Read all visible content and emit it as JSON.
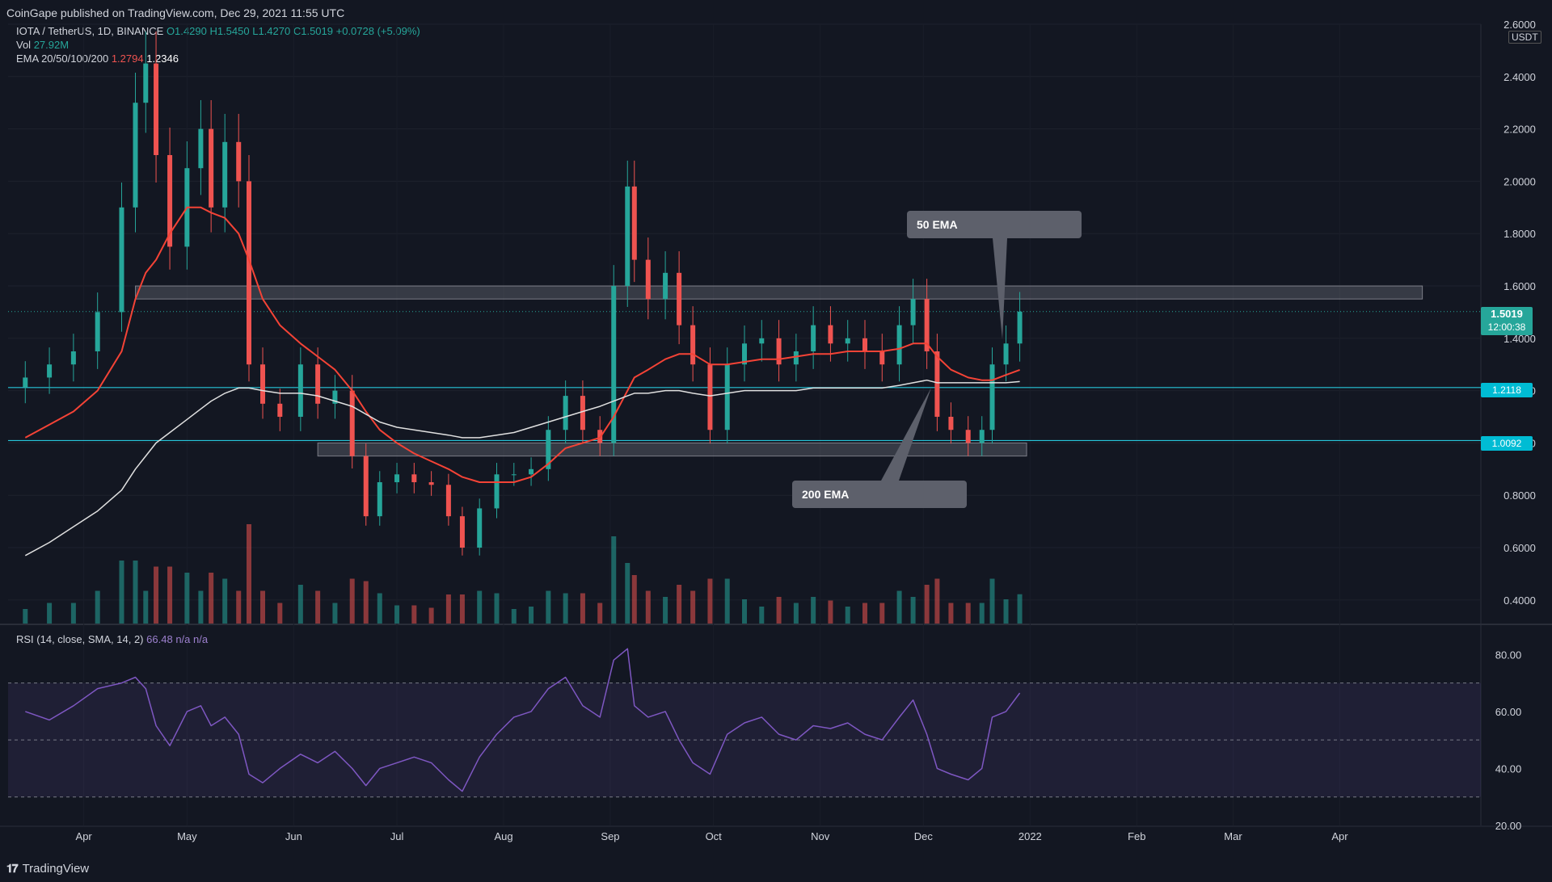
{
  "header": {
    "publisher": "CoinGape published on TradingView.com, Dec 29, 2021 11:55 UTC"
  },
  "legend": {
    "symbol": "IOTA / TetherUS, 1D, BINANCE",
    "open": "O1.4290",
    "high": "H1.5450",
    "low": "L1.4270",
    "close": "C1.5019",
    "change": "+0.0728 (+5.09%)",
    "vol_label": "Vol",
    "vol_value": "27.92M",
    "ema_label": "EMA 20/50/100/200",
    "ema_value1": "1.2794",
    "ema_value2": "1.2346",
    "rsi_label": "RSI (14, close, SMA, 14, 2)",
    "rsi_value": "66.48",
    "rsi_na": "n/a n/a"
  },
  "price_axis": {
    "currency": "USDT",
    "current_price": "1.5019",
    "countdown": "12:00:38",
    "level_1": "1.2118",
    "level_2": "1.0092"
  },
  "annotations": {
    "ema50": "50 EMA",
    "ema200": "200 EMA"
  },
  "footer": {
    "brand": "TradingView"
  },
  "colors": {
    "background": "#131722",
    "up": "#26a69a",
    "down": "#ef5350",
    "ema50": "#f44336",
    "ema200": "#e0e0e0",
    "rsi": "#7e57c2",
    "level": "#26c6da"
  },
  "chart_data": [
    {
      "type": "line",
      "panel": "price",
      "title": "IOTA / TetherUS, 1D, BINANCE",
      "x_ticks": [
        "Apr",
        "May",
        "Jun",
        "Jul",
        "Aug",
        "Sep",
        "Oct",
        "Nov",
        "Dec",
        "2022",
        "Feb",
        "Mar",
        "Apr"
      ],
      "y_ticks": [
        "0.4000",
        "0.6000",
        "0.8000",
        "1.0000",
        "1.2000",
        "1.4000",
        "1.6000",
        "1.8000",
        "2.0000",
        "2.2000",
        "2.4000",
        "2.6000"
      ],
      "ylim": [
        0.31,
        2.6
      ],
      "x": [
        "2021-03-15",
        "2021-03-22",
        "2021-03-29",
        "2021-04-05",
        "2021-04-12",
        "2021-04-16",
        "2021-04-19",
        "2021-04-22",
        "2021-04-26",
        "2021-05-01",
        "2021-05-05",
        "2021-05-08",
        "2021-05-12",
        "2021-05-16",
        "2021-05-19",
        "2021-05-23",
        "2021-05-28",
        "2021-06-03",
        "2021-06-08",
        "2021-06-13",
        "2021-06-18",
        "2021-06-22",
        "2021-06-26",
        "2021-07-01",
        "2021-07-06",
        "2021-07-11",
        "2021-07-16",
        "2021-07-20",
        "2021-07-25",
        "2021-07-30",
        "2021-08-04",
        "2021-08-09",
        "2021-08-14",
        "2021-08-19",
        "2021-08-24",
        "2021-08-29",
        "2021-09-02",
        "2021-09-06",
        "2021-09-08",
        "2021-09-12",
        "2021-09-17",
        "2021-09-21",
        "2021-09-25",
        "2021-09-30",
        "2021-10-05",
        "2021-10-10",
        "2021-10-15",
        "2021-10-20",
        "2021-10-25",
        "2021-10-30",
        "2021-11-04",
        "2021-11-09",
        "2021-11-14",
        "2021-11-19",
        "2021-11-24",
        "2021-11-28",
        "2021-12-02",
        "2021-12-05",
        "2021-12-09",
        "2021-12-14",
        "2021-12-18",
        "2021-12-21",
        "2021-12-25",
        "2021-12-29"
      ],
      "series": [
        {
          "name": "",
          "role": "close",
          "values": [
            1.25,
            1.3,
            1.35,
            1.5,
            1.9,
            2.3,
            2.45,
            2.1,
            1.75,
            2.05,
            2.2,
            1.9,
            2.15,
            2.0,
            1.3,
            1.15,
            1.1,
            1.3,
            1.15,
            1.2,
            0.95,
            0.72,
            0.85,
            0.88,
            0.85,
            0.84,
            0.72,
            0.6,
            0.75,
            0.88,
            0.88,
            0.9,
            1.05,
            1.18,
            1.05,
            1.0,
            1.6,
            1.98,
            1.7,
            1.55,
            1.65,
            1.45,
            1.3,
            1.05,
            1.3,
            1.38,
            1.4,
            1.3,
            1.35,
            1.45,
            1.38,
            1.4,
            1.35,
            1.3,
            1.45,
            1.55,
            1.35,
            1.1,
            1.05,
            1.0,
            1.05,
            1.3,
            1.38,
            1.5019
          ]
        },
        {
          "name": "",
          "role": "EMA 50",
          "values": [
            1.02,
            1.07,
            1.12,
            1.2,
            1.35,
            1.55,
            1.65,
            1.7,
            1.8,
            1.9,
            1.9,
            1.88,
            1.86,
            1.8,
            1.7,
            1.55,
            1.45,
            1.38,
            1.33,
            1.28,
            1.2,
            1.12,
            1.05,
            1.0,
            0.96,
            0.93,
            0.9,
            0.87,
            0.85,
            0.85,
            0.85,
            0.87,
            0.92,
            0.98,
            1.0,
            1.02,
            1.1,
            1.2,
            1.25,
            1.28,
            1.32,
            1.34,
            1.34,
            1.3,
            1.3,
            1.31,
            1.32,
            1.32,
            1.33,
            1.34,
            1.34,
            1.35,
            1.35,
            1.35,
            1.36,
            1.38,
            1.38,
            1.33,
            1.28,
            1.25,
            1.24,
            1.24,
            1.26,
            1.2794
          ]
        },
        {
          "name": "",
          "role": "EMA 200",
          "values": [
            0.57,
            0.62,
            0.68,
            0.74,
            0.82,
            0.9,
            0.95,
            1.0,
            1.04,
            1.09,
            1.13,
            1.16,
            1.19,
            1.21,
            1.21,
            1.2,
            1.19,
            1.19,
            1.18,
            1.16,
            1.14,
            1.11,
            1.08,
            1.06,
            1.05,
            1.04,
            1.03,
            1.02,
            1.02,
            1.03,
            1.04,
            1.06,
            1.08,
            1.1,
            1.12,
            1.14,
            1.16,
            1.18,
            1.19,
            1.19,
            1.2,
            1.2,
            1.19,
            1.18,
            1.19,
            1.2,
            1.2,
            1.2,
            1.2,
            1.21,
            1.21,
            1.21,
            1.21,
            1.21,
            1.22,
            1.23,
            1.24,
            1.23,
            1.23,
            1.23,
            1.23,
            1.23,
            1.23,
            1.2346
          ]
        }
      ],
      "zones": [
        {
          "label": "",
          "from": 1.55,
          "to": 1.6,
          "start": "2021-04-16",
          "end": "2022-04-25"
        },
        {
          "label": "",
          "from": 0.95,
          "to": 1.0,
          "start": "2021-06-08",
          "end": "2021-12-31"
        }
      ],
      "levels": [
        1.2118,
        1.0092
      ]
    },
    {
      "type": "line",
      "panel": "rsi",
      "title": "RSI (14, close, SMA, 14, 2)",
      "y_ticks": [
        "20.00",
        "40.00",
        "60.00",
        "80.00"
      ],
      "ylim": [
        20,
        90
      ],
      "bands": [
        30,
        50,
        70
      ],
      "series": [
        {
          "name": "",
          "values": [
            60,
            57,
            62,
            68,
            70,
            72,
            68,
            55,
            48,
            60,
            62,
            55,
            58,
            52,
            38,
            35,
            40,
            45,
            42,
            46,
            40,
            34,
            40,
            42,
            44,
            42,
            36,
            32,
            44,
            52,
            58,
            60,
            68,
            72,
            62,
            58,
            78,
            82,
            62,
            58,
            60,
            50,
            42,
            38,
            52,
            56,
            58,
            52,
            50,
            55,
            54,
            56,
            52,
            50,
            58,
            64,
            52,
            40,
            38,
            36,
            40,
            58,
            60,
            66.48
          ]
        }
      ]
    }
  ]
}
